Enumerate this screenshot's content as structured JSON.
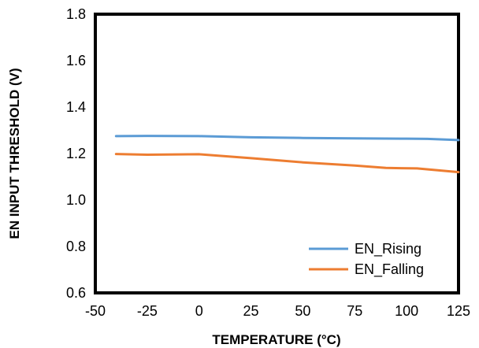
{
  "chart_data": {
    "type": "line",
    "xlabel": "TEMPERATURE  (°C)",
    "ylabel": "EN INPUT THRESHOLD  (V)",
    "xlim": [
      -50,
      125
    ],
    "ylim": [
      0.6,
      1.8
    ],
    "x_ticks": [
      "-50",
      "-25",
      "0",
      "25",
      "50",
      "75",
      "100",
      "125"
    ],
    "y_ticks": [
      "0.6",
      "0.8",
      "1.0",
      "1.2",
      "1.4",
      "1.6",
      "1.8"
    ],
    "grid": false,
    "legend_position": "bottom-right",
    "series": [
      {
        "name": "EN_Rising",
        "color": "#5B9BD5",
        "x": [
          -40,
          -25,
          0,
          25,
          50,
          75,
          100,
          110,
          125
        ],
        "y": [
          1.275,
          1.276,
          1.275,
          1.27,
          1.267,
          1.265,
          1.264,
          1.263,
          1.258
        ]
      },
      {
        "name": "EN_Falling",
        "color": "#ED7D31",
        "x": [
          -40,
          -25,
          0,
          25,
          50,
          75,
          90,
          105,
          125
        ],
        "y": [
          1.198,
          1.195,
          1.197,
          1.18,
          1.162,
          1.148,
          1.138,
          1.136,
          1.12
        ]
      }
    ]
  }
}
